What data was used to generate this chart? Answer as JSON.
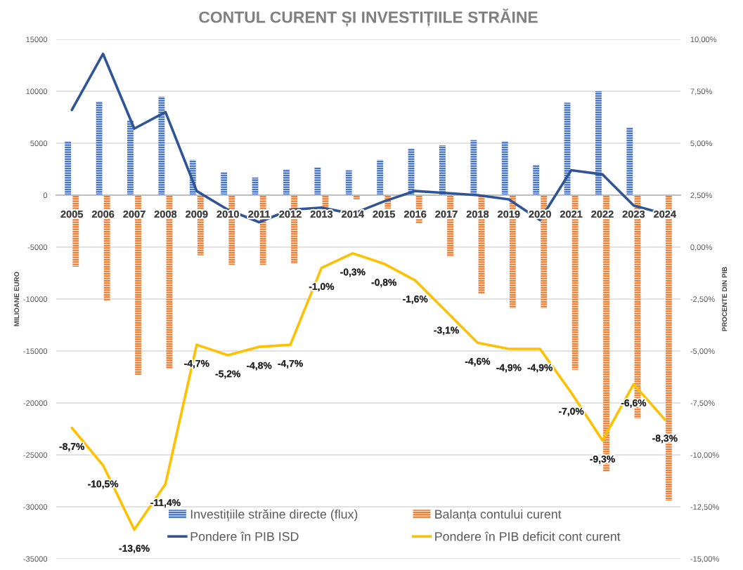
{
  "chart_data": {
    "type": "bar",
    "title": "CONTUL CURENT ȘI INVESTIȚIILE STRĂINE",
    "ylabel": "MILIOANE EURO",
    "y2label": "PROCENTE DIN PIB",
    "categories": [
      "2005",
      "2006",
      "2007",
      "2008",
      "2009",
      "2010",
      "2011",
      "2012",
      "2013",
      "2014",
      "2015",
      "2016",
      "2017",
      "2018",
      "2019",
      "2020",
      "2021",
      "2022",
      "2023",
      "2024"
    ],
    "series": [
      {
        "name": "Investițiile străine directe (flux)",
        "color": "#4472c4",
        "values": [
          5200,
          9000,
          7200,
          9500,
          3400,
          2200,
          1700,
          2500,
          2700,
          2400,
          3400,
          4500,
          4800,
          5300,
          5200,
          2900,
          8900,
          10000,
          6500,
          null
        ]
      },
      {
        "name": "Balanța contului curent",
        "color": "#ed7d31",
        "values": [
          -6900,
          -10200,
          -17300,
          -16700,
          -5800,
          -6700,
          -6700,
          -6600,
          -1400,
          -400,
          -1300,
          -2700,
          -5900,
          -9500,
          -10900,
          -10900,
          -16800,
          -26600,
          -21500,
          -29400
        ]
      },
      {
        "name": "Pondere în PIB ISD",
        "type": "line",
        "axis": "y2",
        "color": "#2f5597",
        "values": [
          6.6,
          9.3,
          5.7,
          6.5,
          2.7,
          1.8,
          1.2,
          1.8,
          1.9,
          1.6,
          2.2,
          2.7,
          2.6,
          2.5,
          2.3,
          1.3,
          3.7,
          3.5,
          2.0,
          1.6
        ]
      },
      {
        "name": "Pondere în PIB deficit cont curent",
        "type": "line",
        "axis": "y2",
        "color": "#ffc000",
        "values": [
          -8.7,
          -10.5,
          -13.6,
          -11.4,
          -4.7,
          -5.2,
          -4.8,
          -4.7,
          -1.0,
          -0.3,
          -0.8,
          -1.6,
          -3.1,
          -4.6,
          -4.9,
          -4.9,
          -7.0,
          -9.3,
          -6.6,
          -8.3
        ],
        "value_labels": [
          "-8,7%",
          "-10,5%",
          "-13,6%",
          "-11,4%",
          "-4,7%",
          "-5,2%",
          "-4,8%",
          "-4,7%",
          "-1,0%",
          "-0,3%",
          "-0,8%",
          "-1,6%",
          "-3,1%",
          "-4,6%",
          "-4,9%",
          "-4,9%",
          "-7,0%",
          "-9,3%",
          "-6,6%",
          "-8,3%"
        ]
      }
    ],
    "ylim": [
      -35000,
      15000
    ],
    "yticks": [
      15000,
      10000,
      5000,
      0,
      -5000,
      -10000,
      -15000,
      -20000,
      -25000,
      -30000,
      -35000
    ],
    "y2lim": [
      -15,
      10
    ],
    "y2ticks": [
      {
        "value": 10,
        "label": "10,00%"
      },
      {
        "value": 7.5,
        "label": "7,50%"
      },
      {
        "value": 5,
        "label": "5,00%"
      },
      {
        "value": 2.5,
        "label": "2,50%"
      },
      {
        "value": 0,
        "label": "0,00%"
      },
      {
        "value": -2.5,
        "label": "-2,50%"
      },
      {
        "value": -5,
        "label": "-5,00%"
      },
      {
        "value": -7.5,
        "label": "-7,50%"
      },
      {
        "value": -10,
        "label": "-10,00%"
      },
      {
        "value": -12.5,
        "label": "-12,50%"
      },
      {
        "value": -15,
        "label": "-15,00%"
      }
    ],
    "grid": "y",
    "legend": "bottom"
  }
}
